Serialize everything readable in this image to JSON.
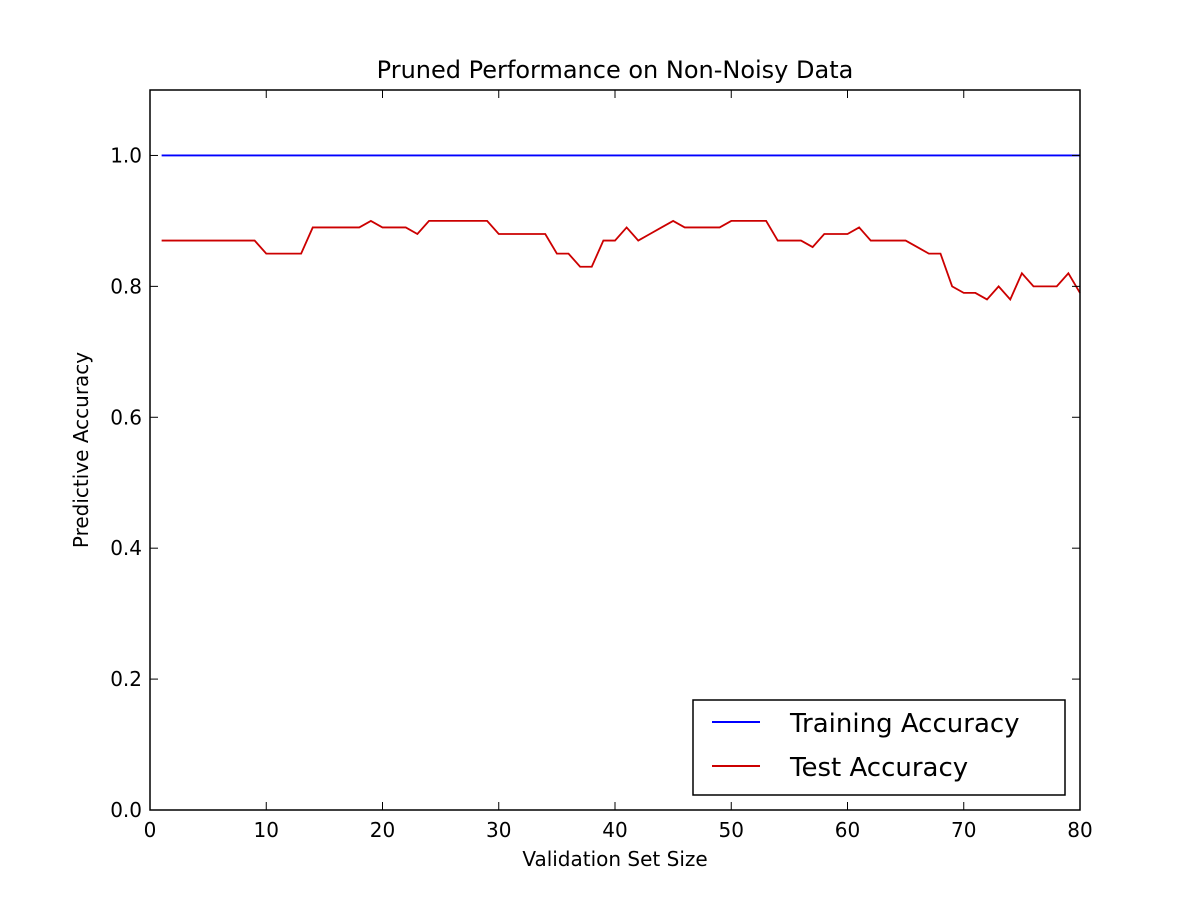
{
  "chart_data": {
    "type": "line",
    "title": "Pruned Performance on Non-Noisy Data",
    "xlabel": "Validation Set Size",
    "ylabel": "Predictive Accuracy",
    "xlim": [
      0,
      80
    ],
    "ylim": [
      0.0,
      1.1
    ],
    "x_ticks": [
      0,
      10,
      20,
      30,
      40,
      50,
      60,
      70,
      80
    ],
    "x_tick_labels": [
      "0",
      "10",
      "20",
      "30",
      "40",
      "50",
      "60",
      "70",
      "80"
    ],
    "y_ticks": [
      0.0,
      0.2,
      0.4,
      0.6,
      0.8,
      1.0
    ],
    "y_tick_labels": [
      "0.0",
      "0.2",
      "0.4",
      "0.6",
      "0.8",
      "1.0"
    ],
    "grid": false,
    "legend_position": "bottom-right",
    "x": [
      1,
      2,
      3,
      4,
      5,
      6,
      7,
      8,
      9,
      10,
      11,
      12,
      13,
      14,
      15,
      16,
      17,
      18,
      19,
      20,
      21,
      22,
      23,
      24,
      25,
      26,
      27,
      28,
      29,
      30,
      31,
      32,
      33,
      34,
      35,
      36,
      37,
      38,
      39,
      40,
      41,
      42,
      43,
      44,
      45,
      46,
      47,
      48,
      49,
      50,
      51,
      52,
      53,
      54,
      55,
      56,
      57,
      58,
      59,
      60,
      61,
      62,
      63,
      64,
      65,
      66,
      67,
      68,
      69,
      70,
      71,
      72,
      73,
      74,
      75,
      76,
      77,
      78,
      79,
      80
    ],
    "series": [
      {
        "name": "Training Accuracy",
        "color": "#0000ff",
        "values": [
          1.0,
          1.0,
          1.0,
          1.0,
          1.0,
          1.0,
          1.0,
          1.0,
          1.0,
          1.0,
          1.0,
          1.0,
          1.0,
          1.0,
          1.0,
          1.0,
          1.0,
          1.0,
          1.0,
          1.0,
          1.0,
          1.0,
          1.0,
          1.0,
          1.0,
          1.0,
          1.0,
          1.0,
          1.0,
          1.0,
          1.0,
          1.0,
          1.0,
          1.0,
          1.0,
          1.0,
          1.0,
          1.0,
          1.0,
          1.0,
          1.0,
          1.0,
          1.0,
          1.0,
          1.0,
          1.0,
          1.0,
          1.0,
          1.0,
          1.0,
          1.0,
          1.0,
          1.0,
          1.0,
          1.0,
          1.0,
          1.0,
          1.0,
          1.0,
          1.0,
          1.0,
          1.0,
          1.0,
          1.0,
          1.0,
          1.0,
          1.0,
          1.0,
          1.0,
          1.0,
          1.0,
          1.0,
          1.0,
          1.0,
          1.0,
          1.0,
          1.0,
          1.0,
          1.0,
          1.0
        ]
      },
      {
        "name": "Test Accuracy",
        "color": "#cc0000",
        "values": [
          0.87,
          0.87,
          0.87,
          0.87,
          0.87,
          0.87,
          0.87,
          0.87,
          0.87,
          0.85,
          0.85,
          0.85,
          0.85,
          0.89,
          0.89,
          0.89,
          0.89,
          0.89,
          0.9,
          0.89,
          0.89,
          0.89,
          0.88,
          0.9,
          0.9,
          0.9,
          0.9,
          0.9,
          0.9,
          0.88,
          0.88,
          0.88,
          0.88,
          0.88,
          0.85,
          0.85,
          0.83,
          0.83,
          0.87,
          0.87,
          0.89,
          0.87,
          0.88,
          0.89,
          0.9,
          0.89,
          0.89,
          0.89,
          0.89,
          0.9,
          0.9,
          0.9,
          0.9,
          0.87,
          0.87,
          0.87,
          0.86,
          0.88,
          0.88,
          0.88,
          0.89,
          0.87,
          0.87,
          0.87,
          0.87,
          0.86,
          0.85,
          0.85,
          0.8,
          0.79,
          0.79,
          0.78,
          0.8,
          0.78,
          0.82,
          0.8,
          0.8,
          0.8,
          0.82,
          0.79
        ]
      }
    ]
  }
}
